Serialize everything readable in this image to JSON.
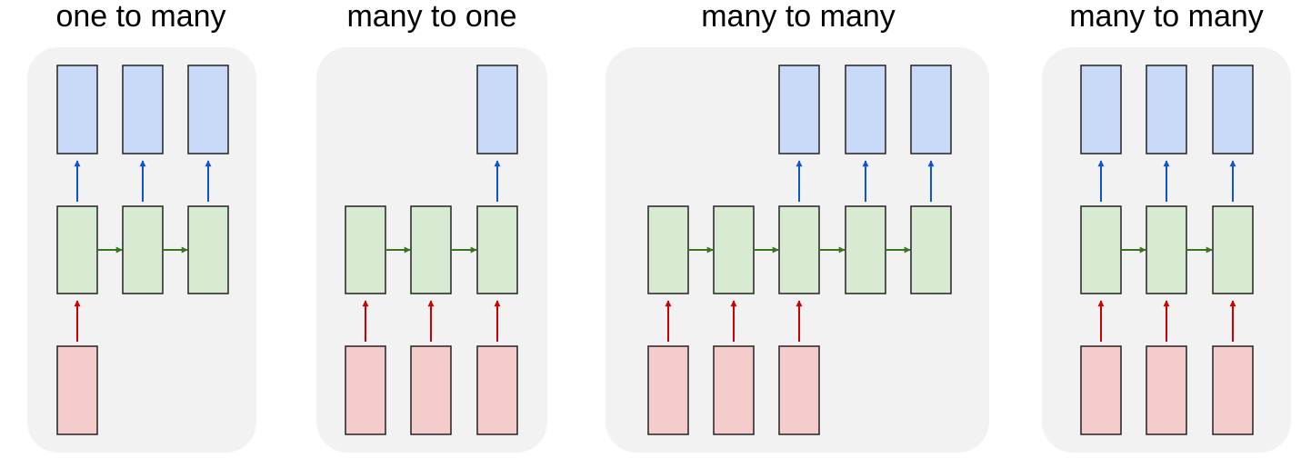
{
  "colors": {
    "panel_bg": "#f2f2f2",
    "output_fill": "#c9daf8",
    "hidden_fill": "#d9ead3",
    "input_fill": "#f4cccc",
    "box_stroke": "#222222",
    "output_arrow": "#1155cc",
    "input_arrow": "#cc0000",
    "recurrent_arrow": "#38761d"
  },
  "panels": [
    {
      "title": "one to many",
      "inputs": [
        true,
        false,
        false
      ],
      "outputs": [
        true,
        true,
        true
      ]
    },
    {
      "title": "many to one",
      "inputs": [
        true,
        true,
        true
      ],
      "outputs": [
        false,
        false,
        true
      ]
    },
    {
      "title": "many to many",
      "inputs": [
        true,
        true,
        true,
        false,
        false
      ],
      "outputs": [
        false,
        false,
        true,
        true,
        true
      ]
    },
    {
      "title": "many to many",
      "inputs": [
        true,
        true,
        true
      ],
      "outputs": [
        true,
        true,
        true
      ]
    }
  ]
}
